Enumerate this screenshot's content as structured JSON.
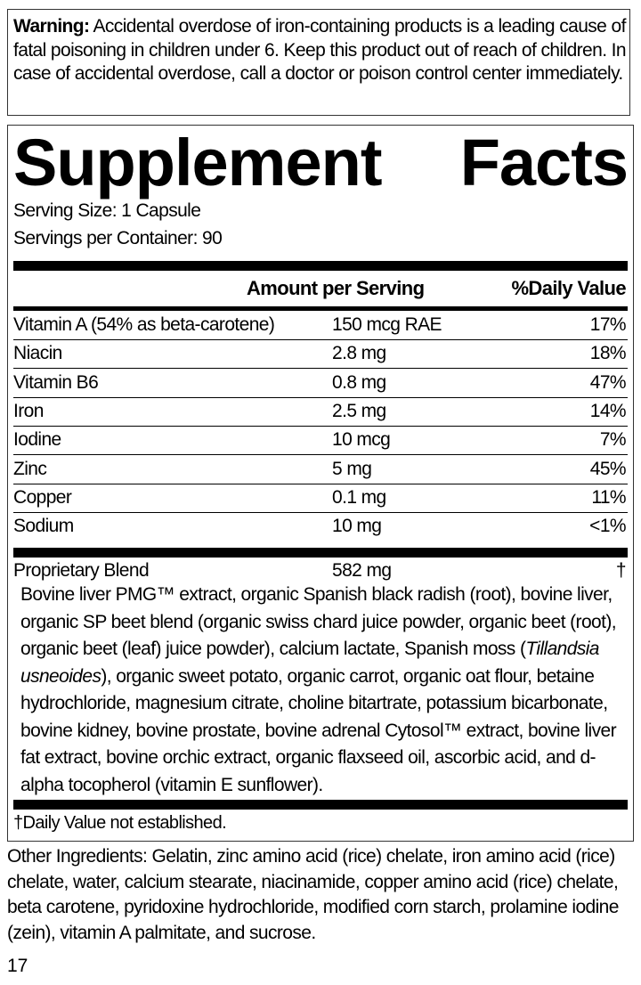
{
  "warning": {
    "label": "Warning:",
    "text": " Accidental overdose of iron-containing products is a leading cause of fatal poisoning in children under 6. Keep this product out of reach of children. In case of accidental overdose, call a doctor or poison control center immediately."
  },
  "facts": {
    "title_word1": "Supplement",
    "title_word2": "Facts",
    "serving_size": "Serving Size: 1 Capsule",
    "servings_per_container": "Servings per Container: 90",
    "header_amount": "Amount per Serving",
    "header_dv": "%Daily Value",
    "nutrients": [
      {
        "name": "Vitamin A (54% as beta-carotene)",
        "amount": "150 mcg RAE",
        "dv": "17%"
      },
      {
        "name": "Niacin",
        "amount": "2.8 mg",
        "dv": "18%"
      },
      {
        "name": "Vitamin B6",
        "amount": "0.8 mg",
        "dv": "47%"
      },
      {
        "name": "Iron",
        "amount": "2.5 mg",
        "dv": "14%"
      },
      {
        "name": "Iodine",
        "amount": "10 mcg",
        "dv": "7%"
      },
      {
        "name": "Zinc",
        "amount": "5 mg",
        "dv": "45%"
      },
      {
        "name": "Copper",
        "amount": "0.1 mg",
        "dv": "11%"
      },
      {
        "name": "Sodium",
        "amount": "10 mg",
        "dv": "<1%"
      }
    ],
    "blend": {
      "name": "Proprietary Blend",
      "amount": "582 mg",
      "dv": "†",
      "ingredients_part1": "Bovine liver PMG™ extract, organic Spanish black radish (root), bovine liver, organic SP beet blend (organic swiss chard juice powder, organic beet (root), organic beet (leaf) juice powder), calcium lactate, Spanish moss (",
      "ingredients_italic": "Tillandsia usneoides",
      "ingredients_part2": "), organic sweet potato, organic carrot, organic oat flour, betaine hydrochloride, magnesium citrate, choline bitartrate, potassium bicarbonate, bovine kidney, bovine prostate, bovine adrenal Cytosol™ extract, bovine liver fat extract, bovine orchic extract, organic flaxseed oil, ascorbic acid, and d-alpha tocopherol (vitamin E sunflower)."
    },
    "footnote": "†Daily Value not established."
  },
  "other_ingredients": "Other Ingredients: Gelatin, zinc amino acid (rice) chelate, iron amino acid (rice) chelate, water, calcium stearate, niacinamide, copper amino acid (rice) chelate, beta carotene, pyridoxine hydrochloride, modified corn starch, prolamine iodine (zein), vitamin A palmitate, and sucrose.",
  "page_number": "17"
}
